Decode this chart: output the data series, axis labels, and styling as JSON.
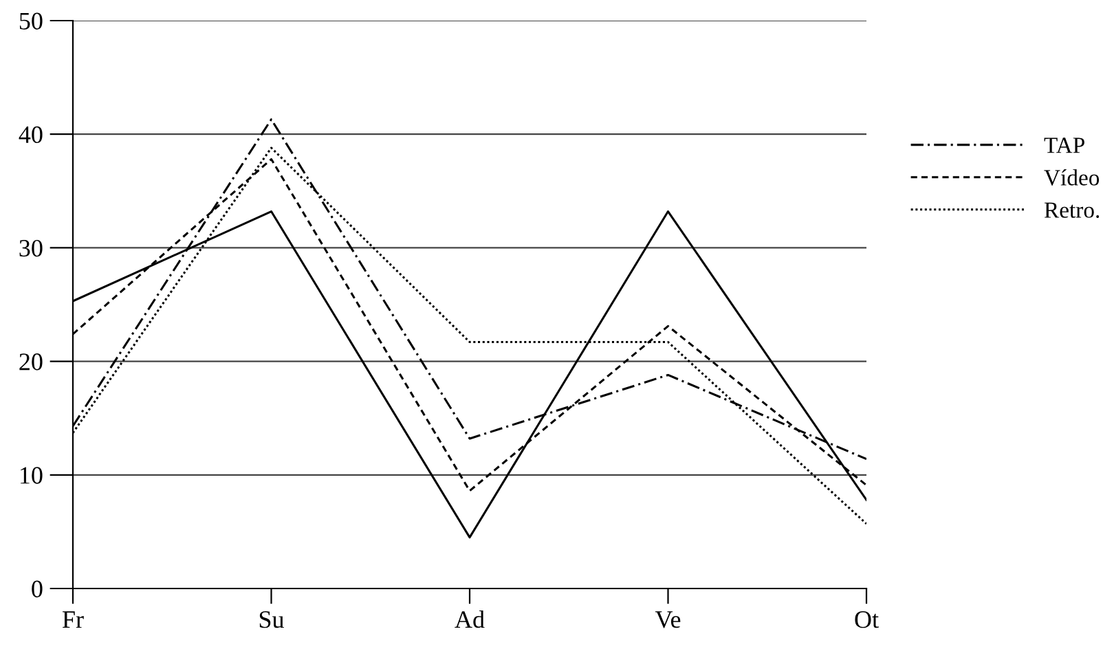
{
  "chart_data": {
    "type": "line",
    "categories": [
      "Fr",
      "Su",
      "Ad",
      "Ve",
      "Ot"
    ],
    "series": [
      {
        "color": "#000000",
        "line_style": "solid",
        "values": [
          25.3,
          33.2,
          4.5,
          33.2,
          7.8
        ]
      },
      {
        "name": "TAP",
        "color": "#000000",
        "line_style": "dashdot",
        "values": [
          14.3,
          41.3,
          13.2,
          18.8,
          11.4
        ]
      },
      {
        "name": "Vídeo",
        "color": "#000000",
        "line_style": "dashed",
        "values": [
          22.4,
          37.8,
          8.6,
          23.1,
          9.1
        ]
      },
      {
        "name": "Retro.",
        "color": "#000000",
        "line_style": "dotted",
        "values": [
          13.7,
          38.8,
          21.7,
          21.7,
          5.7
        ]
      }
    ],
    "ylim": [
      0,
      50
    ],
    "yticks": [
      0,
      10,
      20,
      30,
      40,
      50
    ],
    "grid": "y",
    "legend": "right",
    "marker": "none"
  }
}
